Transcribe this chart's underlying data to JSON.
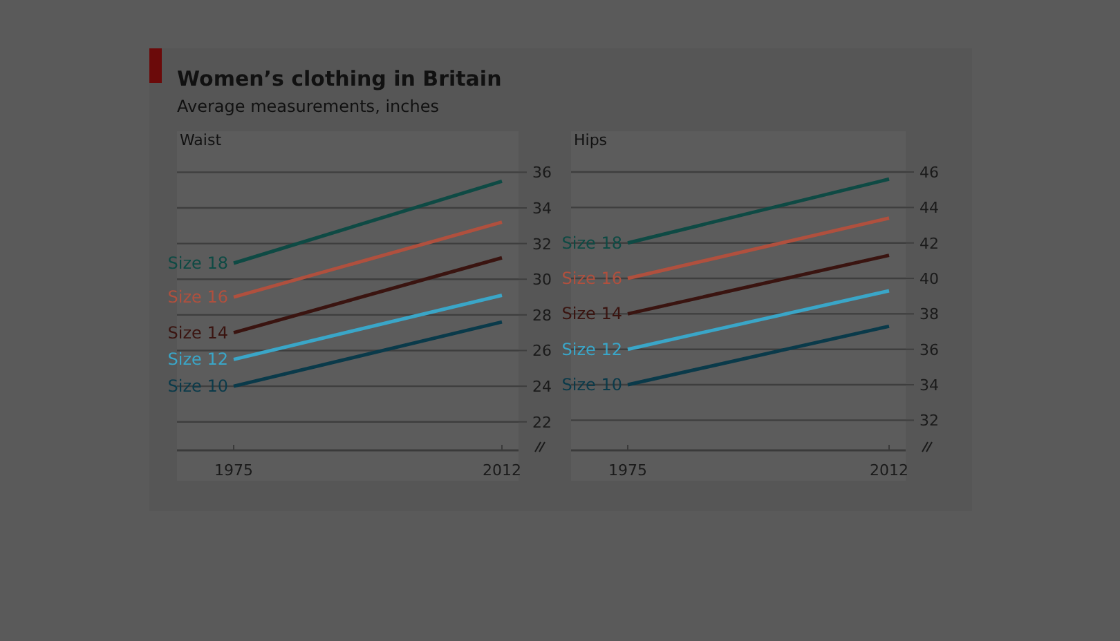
{
  "chart_data": [
    {
      "type": "line",
      "title": "Women’s clothing in Britain",
      "subtitle": "Average measurements, inches",
      "ylabel": "Waist",
      "categories": [
        "1975",
        "2012"
      ],
      "ylim": [
        20.4,
        38.3
      ],
      "yticks": [
        22,
        24,
        26,
        28,
        30,
        32,
        34,
        36
      ],
      "grid": "y",
      "legend": false,
      "marker": "none",
      "series": [
        {
          "name": "Size 18",
          "color": "#0e4a44",
          "values": [
            30.9,
            35.5
          ]
        },
        {
          "name": "Size 16",
          "color": "#b0503e",
          "values": [
            29.0,
            33.2
          ]
        },
        {
          "name": "Size 14",
          "color": "#3a1410",
          "values": [
            27.0,
            31.2
          ]
        },
        {
          "name": "Size 12",
          "color": "#3aa6c8",
          "values": [
            25.5,
            29.1
          ]
        },
        {
          "name": "Size 10",
          "color": "#0a3a4a",
          "values": [
            24.0,
            27.6
          ]
        }
      ]
    },
    {
      "type": "line",
      "ylabel": "Hips",
      "categories": [
        "1975",
        "2012"
      ],
      "ylim": [
        30.3,
        48.3
      ],
      "yticks": [
        32,
        34,
        36,
        38,
        40,
        42,
        44,
        46
      ],
      "grid": "y",
      "legend": false,
      "marker": "none",
      "series": [
        {
          "name": "Size 18",
          "color": "#0e4a44",
          "values": [
            42.0,
            45.6
          ]
        },
        {
          "name": "Size 16",
          "color": "#b0503e",
          "values": [
            40.0,
            43.4
          ]
        },
        {
          "name": "Size 14",
          "color": "#3a1410",
          "values": [
            38.0,
            41.3
          ]
        },
        {
          "name": "Size 12",
          "color": "#3aa6c8",
          "values": [
            36.0,
            39.3
          ]
        },
        {
          "name": "Size 10",
          "color": "#0a3a4a",
          "values": [
            34.0,
            37.3
          ]
        }
      ]
    }
  ]
}
